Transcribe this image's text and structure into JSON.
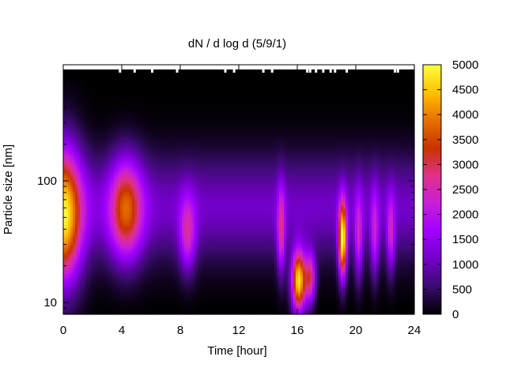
{
  "chart_data": {
    "type": "heatmap",
    "title": "dN / d log d (5/9/1)",
    "xlabel": "Time [hour]",
    "ylabel": "Particle size [nm]",
    "xlim": [
      0,
      24
    ],
    "x_ticks": [
      0,
      4,
      8,
      12,
      16,
      20,
      24
    ],
    "y_scale": "log",
    "ylim": [
      8,
      900
    ],
    "y_ticks": [
      10,
      100
    ],
    "colorbar": {
      "range": [
        0,
        5000
      ],
      "ticks": [
        0,
        500,
        1000,
        1500,
        2000,
        2500,
        3000,
        3500,
        4000,
        4500,
        5000
      ],
      "colormap": [
        "#000000",
        "#3a0b6e",
        "#7300c8",
        "#a000ff",
        "#c81fd9",
        "#e0308a",
        "#c83200",
        "#e87000",
        "#ffc000",
        "#ffff40"
      ]
    },
    "background_level": 1100,
    "features": [
      {
        "time_hour": 0.0,
        "size_nm": 52,
        "peak_value": 4600,
        "time_width_hour": 0.9,
        "size_width_decades": 0.38
      },
      {
        "time_hour": 4.3,
        "size_nm": 58,
        "peak_value": 3400,
        "time_width_hour": 0.8,
        "size_width_decades": 0.28
      },
      {
        "time_hour": 8.5,
        "size_nm": 38,
        "peak_value": 2300,
        "time_width_hour": 0.4,
        "size_width_decades": 0.22
      },
      {
        "time_hour": 14.9,
        "size_nm": 40,
        "peak_value": 2500,
        "time_width_hour": 0.2,
        "size_width_decades": 0.25
      },
      {
        "time_hour": 16.1,
        "size_nm": 15,
        "peak_value": 4700,
        "time_width_hour": 0.35,
        "size_width_decades": 0.18
      },
      {
        "time_hour": 16.9,
        "size_nm": 16,
        "peak_value": 2700,
        "time_width_hour": 0.25,
        "size_width_decades": 0.15
      },
      {
        "time_hour": 19.1,
        "size_nm": 33,
        "peak_value": 4900,
        "time_width_hour": 0.2,
        "size_width_decades": 0.22
      },
      {
        "time_hour": 20.2,
        "size_nm": 36,
        "peak_value": 2100,
        "time_width_hour": 0.2,
        "size_width_decades": 0.25
      },
      {
        "time_hour": 21.3,
        "size_nm": 38,
        "peak_value": 2000,
        "time_width_hour": 0.2,
        "size_width_decades": 0.25
      },
      {
        "time_hour": 22.4,
        "size_nm": 38,
        "peak_value": 2100,
        "time_width_hour": 0.2,
        "size_width_decades": 0.22
      }
    ],
    "missing_data_at_top_hours": [
      3.8,
      4.8,
      6.0,
      7.7,
      11.0,
      11.6,
      13.6,
      14.2,
      16.6,
      16.8,
      17.2,
      17.7,
      18.2,
      18.5,
      19.3,
      22.6,
      22.8
    ]
  }
}
